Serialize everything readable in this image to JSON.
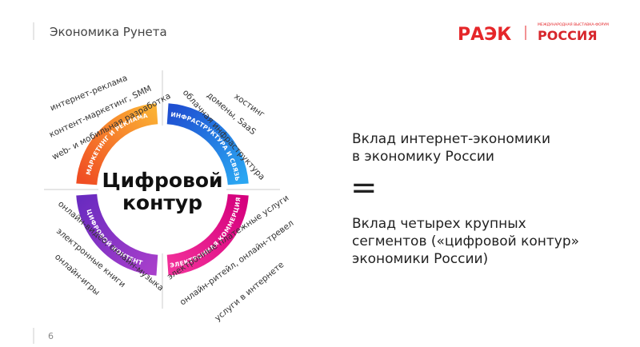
{
  "header": {
    "title": "Экономика Рунета",
    "logo_raek": "РАЭК",
    "logo_russia_caption": "МЕЖДУНАРОДНАЯ ВЫСТАВКА-ФОРУМ",
    "logo_russia": "РОССИЯ"
  },
  "diagram": {
    "center": [
      "Цифровой",
      "контур"
    ],
    "segments": [
      {
        "label": "МАРКЕТИНГ И РЕКЛАМА",
        "items": [
          "интернет-реклама",
          "контент-маркетинг, SMM",
          "web- и мобильная разработка"
        ]
      },
      {
        "label": "ИНФРАСТРУКТУРА И СВЯЗЬ",
        "items": [
          "хостинг",
          "домены, SaaS",
          "облачная инфраструктура"
        ]
      },
      {
        "label": "ЭЛЕКТРОННАЯ КОММЕРЦИЯ",
        "items": [
          "электронные платежные услуги",
          "онлайн-ритейл, онлайн-тревел",
          "услуги в интернете"
        ]
      },
      {
        "label": "ЦИФРОВОЙ КОНТЕНТ",
        "items": [
          "онлайн-видео, онлайн-музыка",
          "электронные книги",
          "онлайн-игры"
        ]
      }
    ]
  },
  "statement": {
    "top": [
      "Вклад интернет-экономики",
      "в экономику России"
    ],
    "equals": "=",
    "bottom": [
      "Вклад четырех крупных",
      "сегментов («цифровой контур»",
      "экономики России)"
    ]
  },
  "footer": {
    "page": "6"
  }
}
